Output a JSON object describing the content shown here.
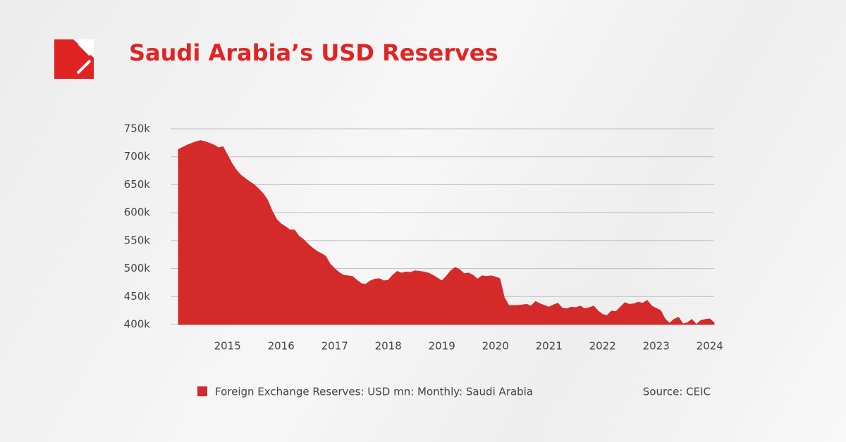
{
  "chart_data": {
    "type": "area",
    "title": "Saudi Arabia’s USD Reserves",
    "source": "Source: CEIC",
    "categories": [
      null,
      null,
      null,
      null,
      null,
      null,
      null,
      null,
      null,
      null,
      null,
      "2015",
      null,
      null,
      null,
      null,
      null,
      null,
      null,
      null,
      null,
      null,
      null,
      "2016",
      null,
      null,
      null,
      null,
      null,
      null,
      null,
      null,
      null,
      null,
      null,
      "2017",
      null,
      null,
      null,
      null,
      null,
      null,
      null,
      null,
      null,
      null,
      null,
      "2018",
      null,
      null,
      null,
      null,
      null,
      null,
      null,
      null,
      null,
      null,
      null,
      "2019",
      null,
      null,
      null,
      null,
      null,
      null,
      null,
      null,
      null,
      null,
      null,
      "2020",
      null,
      null,
      null,
      null,
      null,
      null,
      null,
      null,
      null,
      null,
      null,
      "2021",
      null,
      null,
      null,
      null,
      null,
      null,
      null,
      null,
      null,
      null,
      null,
      "2022",
      null,
      null,
      null,
      null,
      null,
      null,
      null,
      null,
      null,
      null,
      null,
      "2023",
      null,
      null,
      null,
      null,
      null,
      null,
      null,
      null,
      null,
      null,
      null,
      "2024",
      null
    ],
    "series": [
      {
        "name": "Foreign Exchange Reserves: USD mn: Monthly: Saudi Arabia",
        "color": "#d42a2a",
        "values": [
          713000,
          717000,
          721000,
          724000,
          727000,
          729000,
          727000,
          724000,
          721000,
          716000,
          718000,
          703000,
          688000,
          676000,
          667000,
          661000,
          655000,
          650000,
          642000,
          634000,
          622000,
          603000,
          588000,
          580000,
          575000,
          569000,
          569000,
          558000,
          552000,
          544000,
          537000,
          531000,
          527000,
          522000,
          508000,
          500000,
          493000,
          488000,
          487000,
          486000,
          479000,
          473000,
          472000,
          478000,
          481000,
          482000,
          478000,
          479000,
          488000,
          495000,
          492000,
          494000,
          493000,
          496000,
          495000,
          494000,
          492000,
          488000,
          483000,
          478000,
          486000,
          496000,
          502000,
          498000,
          491000,
          492000,
          488000,
          481000,
          487000,
          486000,
          487000,
          485000,
          482000,
          448000,
          434000,
          434000,
          434000,
          435000,
          436000,
          433000,
          441000,
          437000,
          434000,
          431000,
          435000,
          438000,
          429000,
          428000,
          431000,
          430000,
          433000,
          428000,
          430000,
          433000,
          424000,
          418000,
          416000,
          424000,
          423000,
          431000,
          439000,
          436000,
          437000,
          440000,
          438000,
          443000,
          433000,
          429000,
          425000,
          410000,
          402000,
          409000,
          413000,
          401000,
          403000,
          409000,
          400000,
          407000,
          409000,
          410000,
          403000
        ]
      }
    ],
    "ylim": [
      400000,
      750000
    ],
    "yticks": [
      {
        "value": 400000,
        "label": "400k"
      },
      {
        "value": 450000,
        "label": "450k"
      },
      {
        "value": 500000,
        "label": "500k"
      },
      {
        "value": 550000,
        "label": "550k"
      },
      {
        "value": 600000,
        "label": "600k"
      },
      {
        "value": 650000,
        "label": "650k"
      },
      {
        "value": 700000,
        "label": "700k"
      },
      {
        "value": 750000,
        "label": "750k"
      }
    ],
    "grid": true
  }
}
